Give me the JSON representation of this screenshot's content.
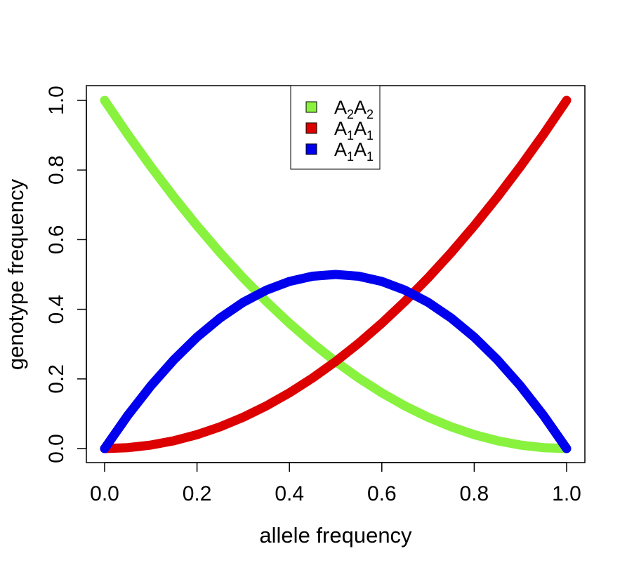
{
  "chart_data": {
    "type": "line",
    "title": "",
    "xlabel": "allele frequency",
    "ylabel": "genotype frequency",
    "xlim": [
      0,
      1
    ],
    "ylim": [
      0,
      1
    ],
    "x_ticks": [
      "0.0",
      "0.2",
      "0.4",
      "0.6",
      "0.8",
      "1.0"
    ],
    "y_ticks": [
      "0.0",
      "0.2",
      "0.4",
      "0.6",
      "0.8",
      "1.0"
    ],
    "grid": false,
    "legend_position": "top-center",
    "x": [
      0.0,
      0.05,
      0.1,
      0.15,
      0.2,
      0.25,
      0.3,
      0.35,
      0.4,
      0.45,
      0.5,
      0.55,
      0.6,
      0.65,
      0.7,
      0.75,
      0.8,
      0.85,
      0.9,
      0.95,
      1.0
    ],
    "series": [
      {
        "legend": {
          "a": "A",
          "a_sub": "2",
          "b": "A",
          "b_sub": "2"
        },
        "color": "#88f23f",
        "values": [
          1.0,
          0.9025,
          0.81,
          0.7225,
          0.64,
          0.5625,
          0.49,
          0.4225,
          0.36,
          0.3025,
          0.25,
          0.2025,
          0.16,
          0.1225,
          0.09,
          0.0625,
          0.04,
          0.0225,
          0.01,
          0.0025,
          0.0
        ]
      },
      {
        "legend": {
          "a": "A",
          "a_sub": "1",
          "b": "A",
          "b_sub": "1"
        },
        "color": "#dd0000",
        "values": [
          0.0,
          0.0025,
          0.01,
          0.0225,
          0.04,
          0.0625,
          0.09,
          0.1225,
          0.16,
          0.2025,
          0.25,
          0.3025,
          0.36,
          0.4225,
          0.49,
          0.5625,
          0.64,
          0.7225,
          0.81,
          0.9025,
          1.0
        ]
      },
      {
        "legend": {
          "a": "A",
          "a_sub": "1",
          "b": "A",
          "b_sub": "1"
        },
        "color": "#0000ee",
        "values": [
          0.0,
          0.095,
          0.18,
          0.255,
          0.32,
          0.375,
          0.42,
          0.455,
          0.48,
          0.495,
          0.5,
          0.495,
          0.48,
          0.455,
          0.42,
          0.375,
          0.32,
          0.255,
          0.18,
          0.095,
          0.0
        ]
      }
    ]
  }
}
